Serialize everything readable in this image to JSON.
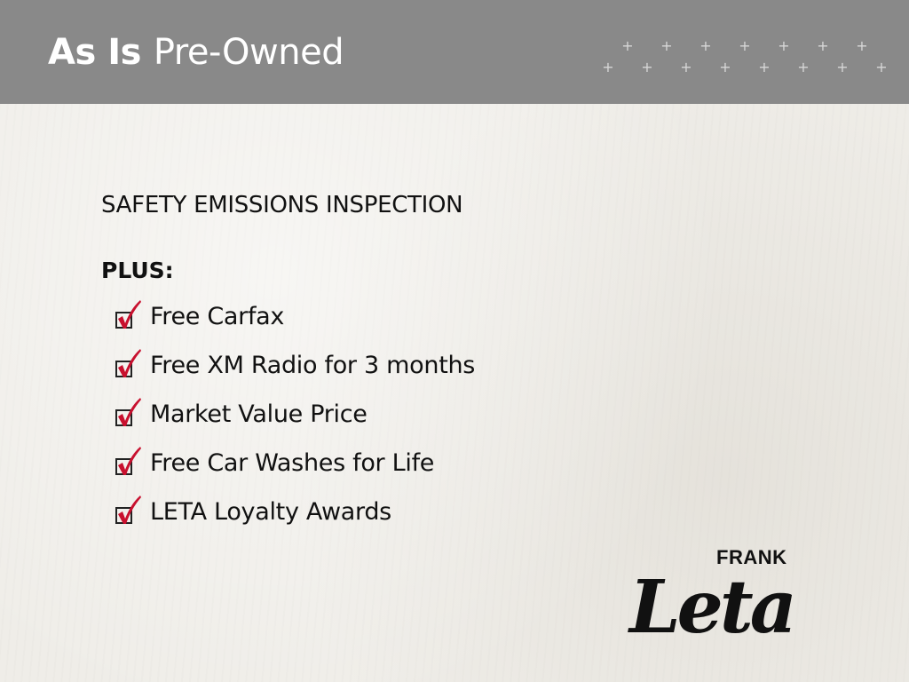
{
  "header": {
    "title_bold": "As Is",
    "title_rest": "Pre-Owned"
  },
  "content": {
    "heading": "SAFETY EMISSIONS INSPECTION",
    "plus_label": "PLUS:",
    "items": [
      {
        "label": "Free Carfax",
        "checked": true
      },
      {
        "label": "Free XM Radio for 3 months",
        "checked": true
      },
      {
        "label": "Market Value Price",
        "checked": true
      },
      {
        "label": "Free Car Washes for Life",
        "checked": true
      },
      {
        "label": "LETA Loyalty Awards",
        "checked": true
      }
    ]
  },
  "logo": {
    "top": "FRANK",
    "script": "Leta"
  },
  "colors": {
    "header": "#898989",
    "check": "#c8102e",
    "background": "#efede8"
  }
}
